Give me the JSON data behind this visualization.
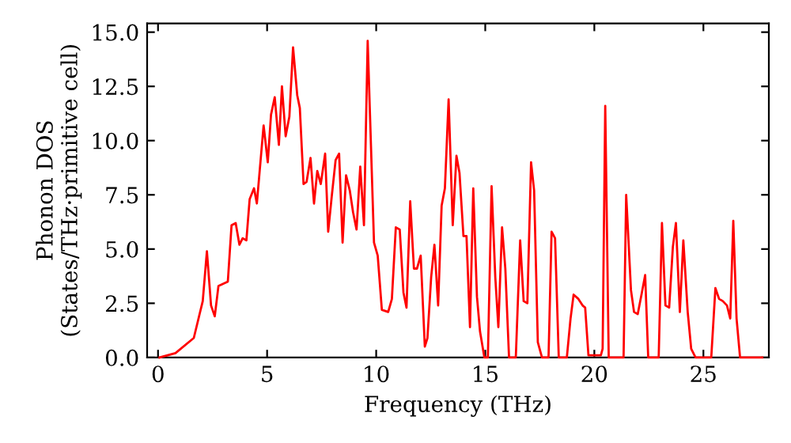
{
  "chart_data": {
    "type": "line",
    "xlabel": "Frequency (THz)",
    "ylabel": "Phonon DOS\n(States/THz·primitive cell)",
    "xlim": [
      -0.5,
      28
    ],
    "ylim": [
      0,
      15.4
    ],
    "xticks": [
      0,
      5,
      10,
      15,
      20,
      25
    ],
    "yticks": [
      {
        "value": 0,
        "label": "0.0"
      },
      {
        "value": 2.5,
        "label": "2.5"
      },
      {
        "value": 5,
        "label": "5.0"
      },
      {
        "value": 7.5,
        "label": "7.5"
      },
      {
        "value": 10,
        "label": "10.0"
      },
      {
        "value": 12.5,
        "label": "12.5"
      },
      {
        "value": 15,
        "label": "15.0"
      }
    ],
    "grid": false,
    "marker": "none",
    "line_style": "solid",
    "series": [
      {
        "color": "#ff0000",
        "x": [
          0.07,
          0.8,
          1.64,
          2.05,
          2.24,
          2.43,
          2.6,
          2.77,
          3.2,
          3.37,
          3.56,
          3.73,
          3.88,
          4.05,
          4.2,
          4.4,
          4.53,
          4.84,
          5.03,
          5.18,
          5.35,
          5.54,
          5.68,
          5.85,
          6.02,
          6.19,
          6.38,
          6.5,
          6.67,
          6.81,
          6.99,
          7.15,
          7.3,
          7.46,
          7.66,
          7.8,
          7.97,
          8.14,
          8.3,
          8.46,
          8.62,
          8.79,
          8.94,
          9.1,
          9.27,
          9.44,
          9.61,
          9.9,
          10.07,
          10.26,
          10.55,
          10.72,
          10.9,
          11.08,
          11.25,
          11.39,
          11.56,
          11.73,
          11.87,
          12.04,
          12.23,
          12.35,
          12.52,
          12.67,
          12.84,
          13.0,
          13.15,
          13.32,
          13.51,
          13.68,
          13.82,
          14.0,
          14.14,
          14.3,
          14.45,
          14.62,
          14.76,
          14.96,
          15.12,
          15.29,
          15.46,
          15.6,
          15.77,
          15.92,
          16.09,
          16.4,
          16.6,
          16.76,
          16.93,
          17.1,
          17.24,
          17.41,
          17.6,
          17.9,
          18.04,
          18.2,
          18.37,
          18.74,
          18.91,
          19.05,
          19.27,
          19.46,
          19.58,
          19.73,
          20.3,
          20.38,
          20.5,
          20.66,
          21.34,
          21.46,
          21.68,
          21.82,
          21.99,
          22.18,
          22.33,
          22.47,
          22.95,
          23.1,
          23.26,
          23.43,
          23.6,
          23.74,
          23.92,
          24.08,
          24.28,
          24.44,
          24.64,
          25.36,
          25.55,
          25.72,
          25.89,
          26.08,
          26.23,
          26.37,
          26.52,
          26.68,
          27.7
        ],
        "values": [
          0,
          0.2,
          0.9,
          2.6,
          4.9,
          2.4,
          1.9,
          3.3,
          3.5,
          6.1,
          6.2,
          5.2,
          5.5,
          5.4,
          7.3,
          7.8,
          7.1,
          10.7,
          9.0,
          11.2,
          12.0,
          9.8,
          12.5,
          10.2,
          11.1,
          14.3,
          12.1,
          11.5,
          8.0,
          8.1,
          9.2,
          7.1,
          8.6,
          8.0,
          9.4,
          5.8,
          7.5,
          9.1,
          9.4,
          5.3,
          8.4,
          7.7,
          6.7,
          5.9,
          8.8,
          6.1,
          14.6,
          5.3,
          4.7,
          2.2,
          2.1,
          2.7,
          6.0,
          5.9,
          3.0,
          2.3,
          7.2,
          4.1,
          4.1,
          4.7,
          0.5,
          0.9,
          3.7,
          5.2,
          2.4,
          7.0,
          7.8,
          11.9,
          6.1,
          9.3,
          8.5,
          5.6,
          5.6,
          1.4,
          7.8,
          2.8,
          1.2,
          0,
          0,
          7.9,
          3.7,
          1.4,
          6.0,
          4.1,
          0,
          0,
          5.4,
          2.6,
          2.5,
          9.0,
          7.7,
          0.7,
          0,
          0,
          5.8,
          5.5,
          0,
          0,
          1.8,
          2.9,
          2.7,
          2.4,
          2.3,
          0.1,
          0.1,
          0.4,
          11.6,
          0,
          0,
          7.5,
          3.1,
          2.1,
          2.0,
          3.0,
          3.8,
          0,
          0,
          6.2,
          2.4,
          2.3,
          5.1,
          6.2,
          2.1,
          5.4,
          2.1,
          0.4,
          0,
          0,
          3.2,
          2.7,
          2.6,
          2.4,
          1.8,
          6.3,
          1.8,
          0,
          0
        ]
      }
    ]
  }
}
